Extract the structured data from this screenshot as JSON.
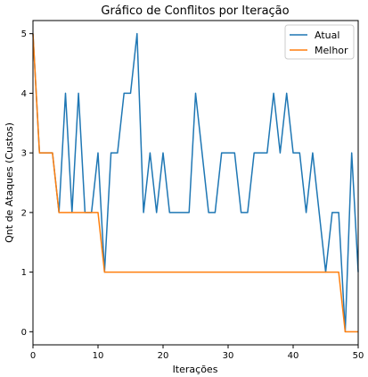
{
  "chart_data": {
    "type": "line",
    "title": "Gráfico de Conflitos por Iteração",
    "xlabel": "Iterações",
    "ylabel": "Qnt de Ataques (Custos)",
    "xlim": [
      0,
      50
    ],
    "ylim": [
      -0.22,
      5.22
    ],
    "xticks": [
      "0",
      "10",
      "20",
      "30",
      "40",
      "50"
    ],
    "yticks": [
      "0",
      "1",
      "2",
      "3",
      "4",
      "5"
    ],
    "grid": false,
    "legend_position": "top-right",
    "series": [
      {
        "name": "Atual",
        "color": "#1f77b4",
        "x": [
          0,
          1,
          2,
          3,
          4,
          5,
          6,
          7,
          8,
          9,
          10,
          11,
          12,
          13,
          14,
          15,
          16,
          17,
          18,
          19,
          20,
          21,
          22,
          23,
          24,
          25,
          26,
          27,
          28,
          29,
          30,
          31,
          32,
          33,
          34,
          35,
          36,
          37,
          38,
          39,
          40,
          41,
          42,
          43,
          44,
          45,
          46,
          47,
          48,
          49,
          50
        ],
        "y": [
          5,
          3,
          3,
          3,
          2,
          4,
          2,
          4,
          2,
          2,
          3,
          1,
          3,
          3,
          4,
          4,
          5,
          2,
          3,
          2,
          3,
          2,
          2,
          2,
          2,
          4,
          3,
          2,
          2,
          3,
          3,
          3,
          2,
          2,
          3,
          3,
          3,
          4,
          3,
          4,
          3,
          3,
          2,
          3,
          2,
          1,
          2,
          2,
          0,
          3,
          1
        ]
      },
      {
        "name": "Melhor",
        "color": "#ff7f0e",
        "x": [
          0,
          1,
          2,
          3,
          4,
          5,
          6,
          7,
          8,
          9,
          10,
          11,
          12,
          13,
          14,
          15,
          16,
          17,
          18,
          19,
          20,
          21,
          22,
          23,
          24,
          25,
          26,
          27,
          28,
          29,
          30,
          31,
          32,
          33,
          34,
          35,
          36,
          37,
          38,
          39,
          40,
          41,
          42,
          43,
          44,
          45,
          46,
          47,
          48,
          49,
          50
        ],
        "y": [
          5,
          3,
          3,
          3,
          2,
          2,
          2,
          2,
          2,
          2,
          2,
          1,
          1,
          1,
          1,
          1,
          1,
          1,
          1,
          1,
          1,
          1,
          1,
          1,
          1,
          1,
          1,
          1,
          1,
          1,
          1,
          1,
          1,
          1,
          1,
          1,
          1,
          1,
          1,
          1,
          1,
          1,
          1,
          1,
          1,
          1,
          1,
          1,
          0,
          0,
          0
        ]
      }
    ]
  }
}
